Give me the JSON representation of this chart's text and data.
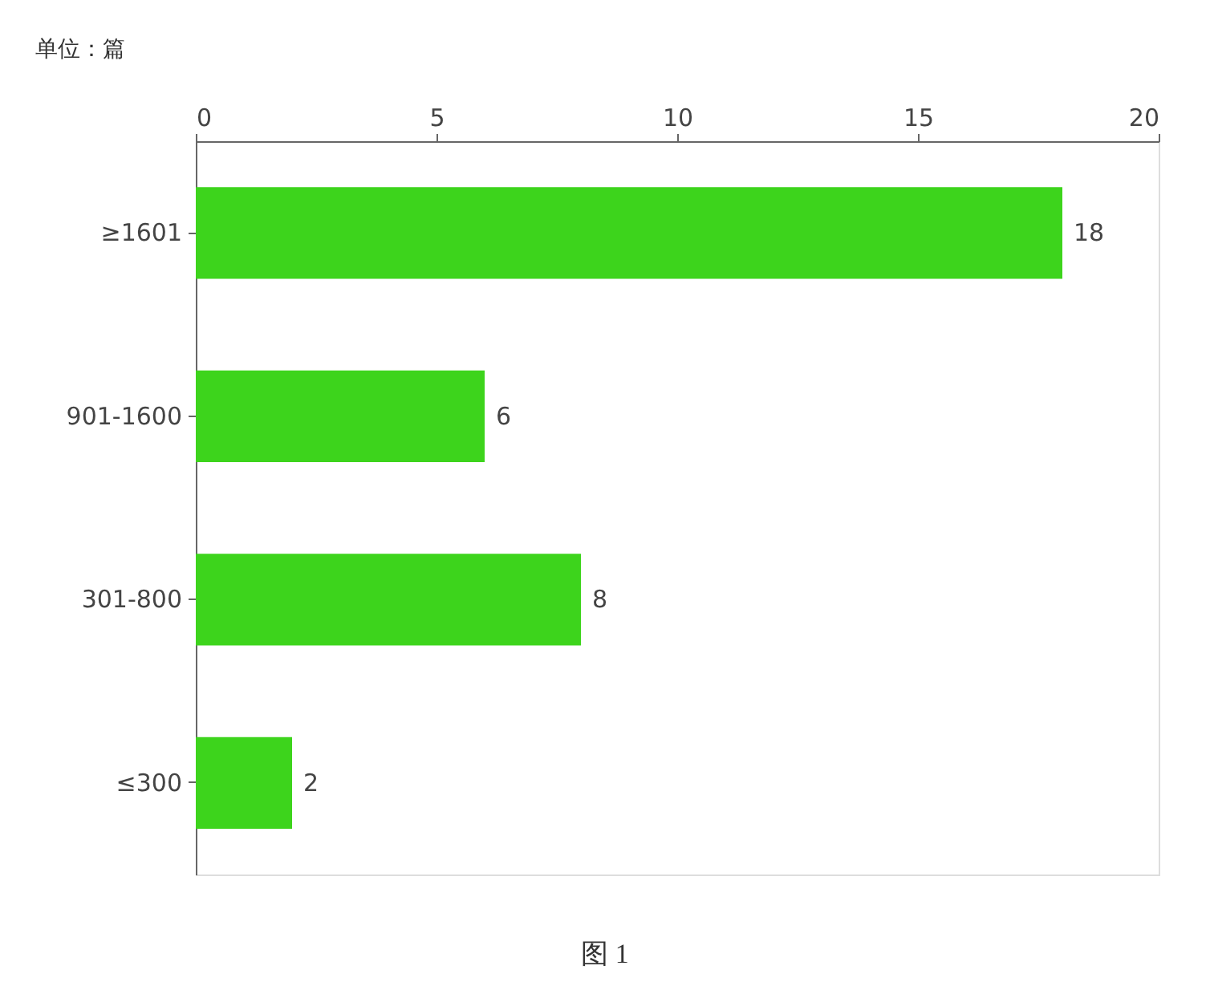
{
  "chart_data": {
    "type": "bar",
    "orientation": "horizontal",
    "categories": [
      "≥1601",
      "901-1600",
      "301-800",
      "≤300"
    ],
    "values": [
      18,
      6,
      8,
      2
    ],
    "color": "#3dd41c",
    "xlim": [
      0,
      20
    ],
    "xticks": [
      0,
      5,
      10,
      15,
      20
    ],
    "grid": false,
    "data_labels": true,
    "annotations": [
      "单位：篇",
      "图 1"
    ]
  }
}
